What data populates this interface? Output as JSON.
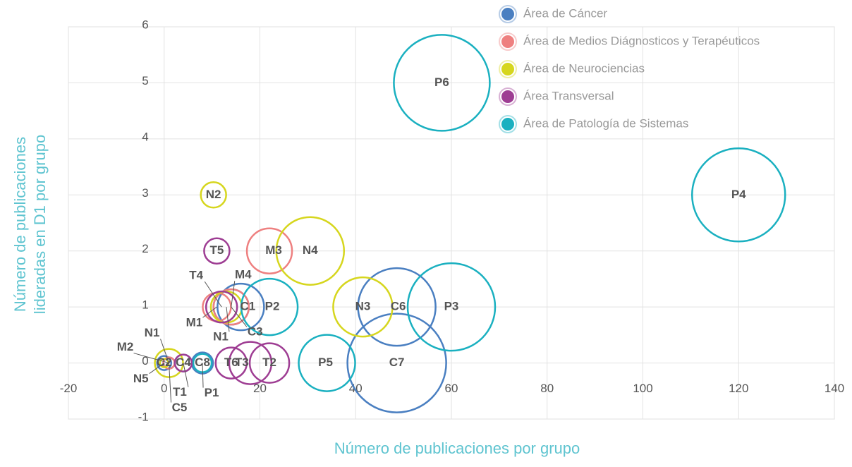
{
  "chart_data": {
    "type": "bubble",
    "xlabel": "Número de publicaciones por grupo",
    "ylabel": [
      "Número de publicaciones",
      "lideradas en D1 por grupo"
    ],
    "xlim": [
      -20,
      140
    ],
    "xticks": [
      -20,
      0,
      20,
      40,
      60,
      80,
      100,
      120,
      140
    ],
    "ylim": [
      -1,
      6
    ],
    "yticks": [
      -1,
      0,
      1,
      2,
      3,
      4,
      5,
      6
    ],
    "grid": true,
    "legend": "top-right",
    "series": [
      {
        "name": "Área de Cáncer",
        "color": "#4a7fc1",
        "labels": [
          "C1",
          "C2",
          "C3",
          "C4",
          "C5",
          "C6",
          "C7",
          "C8"
        ],
        "x": [
          16,
          0,
          14,
          4,
          1,
          48.6,
          48.6,
          8
        ],
        "values": [
          1,
          0,
          1,
          0,
          0,
          1,
          0,
          0
        ],
        "sizes": [
          33,
          10,
          25,
          12,
          8,
          55,
          70,
          15
        ]
      },
      {
        "name": "Área de Medios Diágnosticos y Terapéuticos",
        "color": "#ee8080",
        "labels": [
          "M1",
          "M2",
          "M3",
          "M4"
        ],
        "x": [
          11,
          1,
          22,
          14
        ],
        "values": [
          1,
          0,
          2,
          1
        ],
        "sizes": [
          20,
          8,
          32,
          25
        ]
      },
      {
        "name": "Área de Neurociencias",
        "color": "#d6d61e",
        "labels": [
          "N1",
          "N1",
          "N2",
          "N3",
          "N4",
          "N5"
        ],
        "x": [
          1,
          13,
          10.3,
          41.5,
          30.5,
          0
        ],
        "values": [
          0,
          1,
          3,
          1,
          2,
          0
        ],
        "sizes": [
          20,
          22,
          18,
          42,
          48,
          6
        ]
      },
      {
        "name": "Área Transversal",
        "color": "#9e3d93",
        "labels": [
          "T1",
          "T2",
          "T3",
          "T4",
          "T5",
          "T6"
        ],
        "x": [
          4,
          22,
          18,
          12,
          11,
          14
        ],
        "values": [
          0,
          0,
          0,
          1,
          2,
          0
        ],
        "sizes": [
          12,
          28,
          30,
          22,
          18,
          22
        ]
      },
      {
        "name": "Área de Patología de Sistemas",
        "color": "#1ab0c0",
        "labels": [
          "P1",
          "P2",
          "P3",
          "P4",
          "P5",
          "P6"
        ],
        "x": [
          8,
          22,
          60,
          120,
          34,
          58
        ],
        "values": [
          0,
          1,
          1,
          3,
          0,
          5
        ],
        "sizes": [
          13,
          40,
          62,
          66,
          40,
          68
        ]
      }
    ]
  }
}
